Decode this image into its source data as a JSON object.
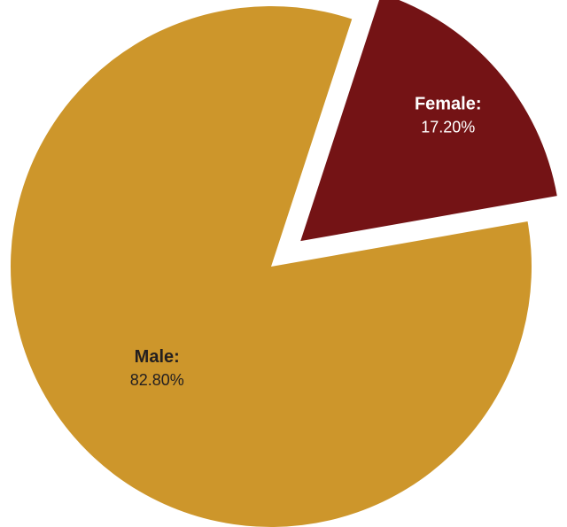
{
  "chart_data": {
    "type": "pie",
    "slices": [
      {
        "name": "Male",
        "label": "Male:",
        "value": 82.8,
        "value_label": "82.80%",
        "color": "#CD962B",
        "label_color": "#231F20",
        "exploded": false
      },
      {
        "name": "Female",
        "label": "Female:",
        "value": 17.2,
        "value_label": "17.20%",
        "color": "#741315",
        "label_color": "#FFFFFF",
        "exploded": true
      }
    ],
    "title": "",
    "legend": "none"
  }
}
